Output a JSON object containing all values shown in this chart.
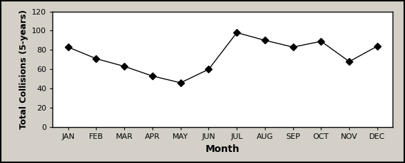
{
  "months": [
    "JAN",
    "FEB",
    "MAR",
    "APR",
    "MAY",
    "JUN",
    "JUL",
    "AUG",
    "SEP",
    "OCT",
    "NOV",
    "DEC"
  ],
  "values": [
    83,
    71,
    63,
    53,
    46,
    60,
    98,
    90,
    83,
    89,
    68,
    84
  ],
  "xlabel": "Month",
  "ylabel": "Total Collisions (5-years)",
  "ylim": [
    0,
    120
  ],
  "yticks": [
    0,
    20,
    40,
    60,
    80,
    100,
    120
  ],
  "line_color": "#000000",
  "marker": "D",
  "marker_size": 5,
  "figure_bg": "#d4d0c8",
  "plot_bg": "#ffffff",
  "border_color": "#000000",
  "xlabel_fontsize": 10,
  "ylabel_fontsize": 9,
  "tick_fontsize": 8
}
